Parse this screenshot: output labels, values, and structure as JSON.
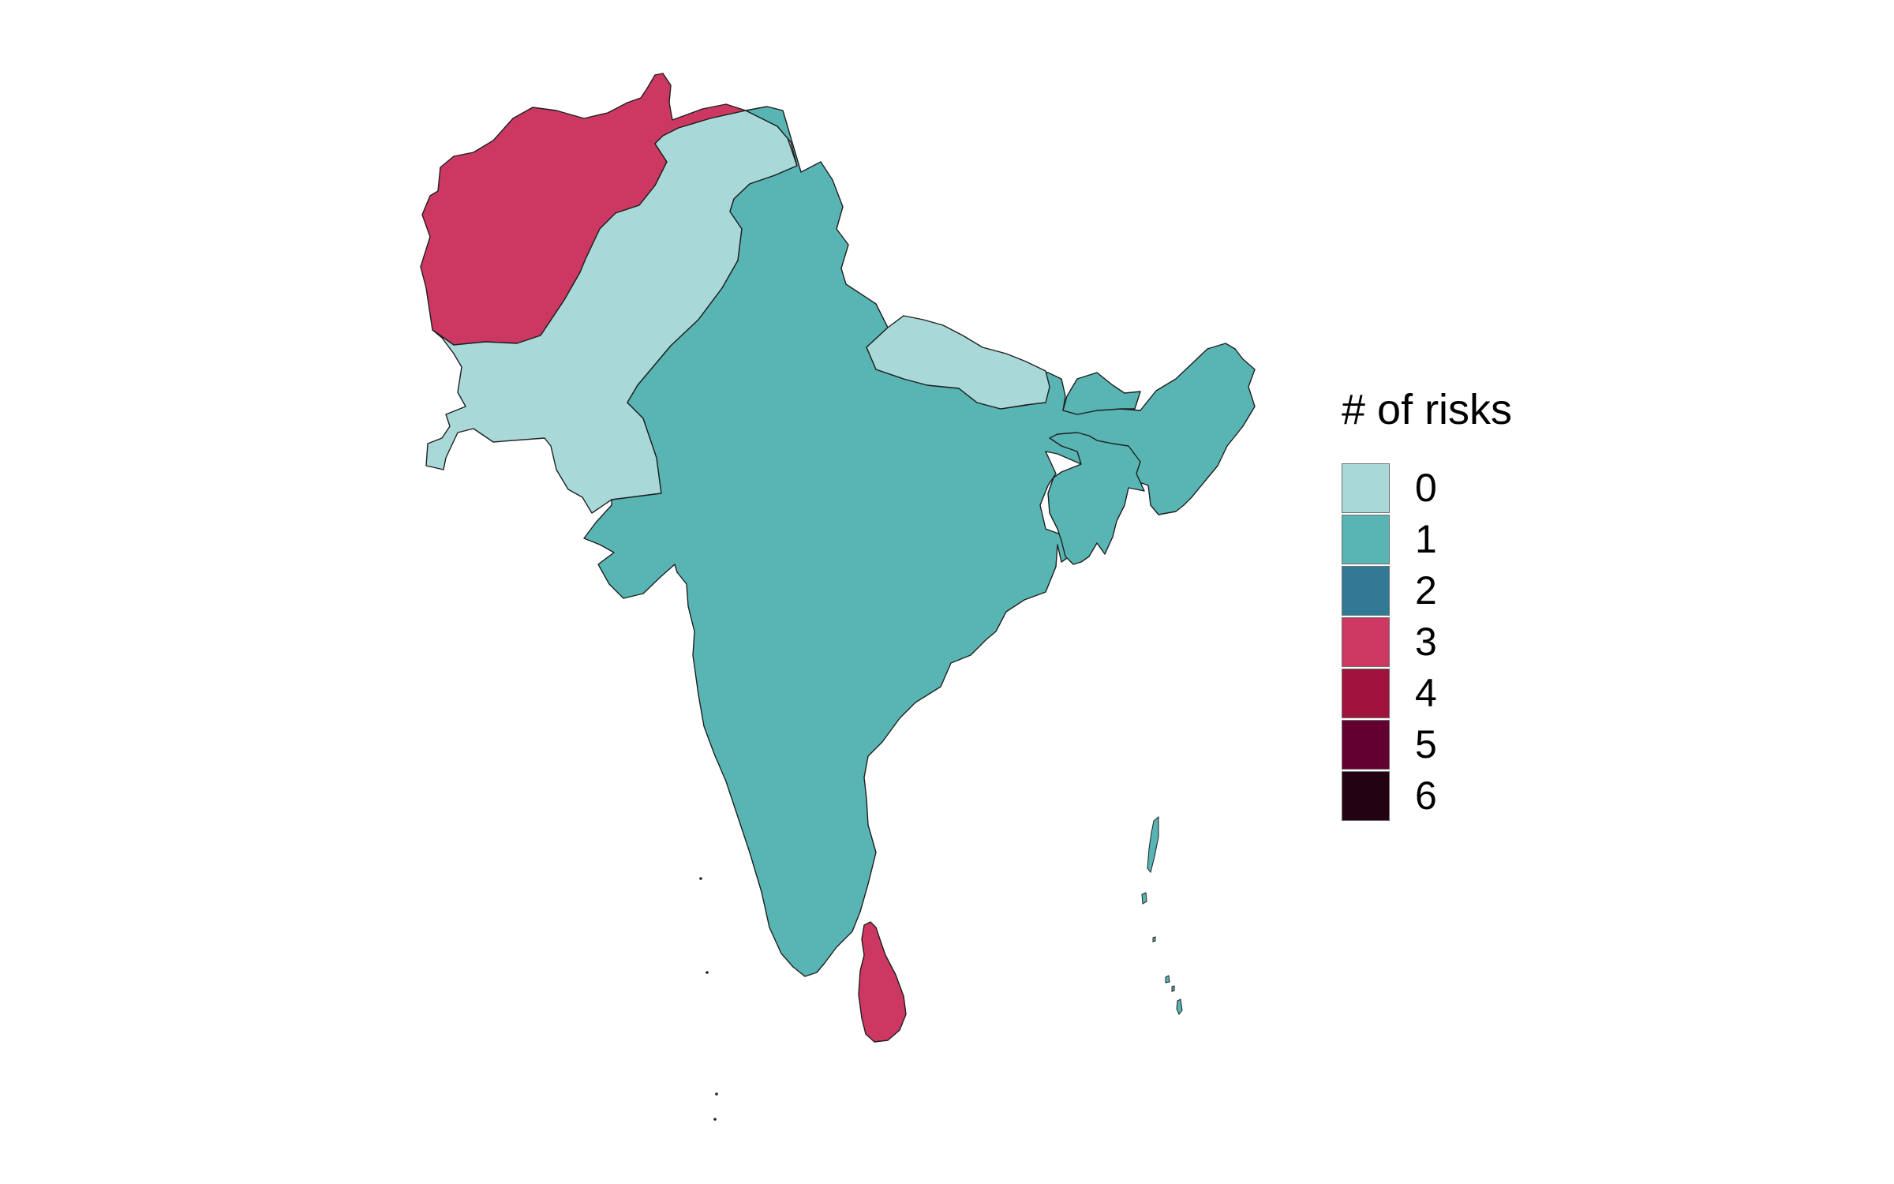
{
  "legend": {
    "title": "# of risks",
    "items": [
      {
        "label": "0",
        "color": "#a8d9d8"
      },
      {
        "label": "1",
        "color": "#58b5b4"
      },
      {
        "label": "2",
        "color": "#317994"
      },
      {
        "label": "3",
        "color": "#cd3862"
      },
      {
        "label": "4",
        "color": "#a0133c"
      },
      {
        "label": "5",
        "color": "#630031"
      },
      {
        "label": "6",
        "color": "#230212"
      }
    ]
  },
  "regions": [
    {
      "id": "afghanistan",
      "risks": 3
    },
    {
      "id": "pakistan",
      "risks": 0
    },
    {
      "id": "nepal",
      "risks": 0
    },
    {
      "id": "india",
      "risks": 1
    },
    {
      "id": "bhutan",
      "risks": 1
    },
    {
      "id": "bangladesh",
      "risks": 1
    },
    {
      "id": "sri-lanka",
      "risks": 3
    },
    {
      "id": "andaman-nicobar",
      "risks": 1
    }
  ]
}
